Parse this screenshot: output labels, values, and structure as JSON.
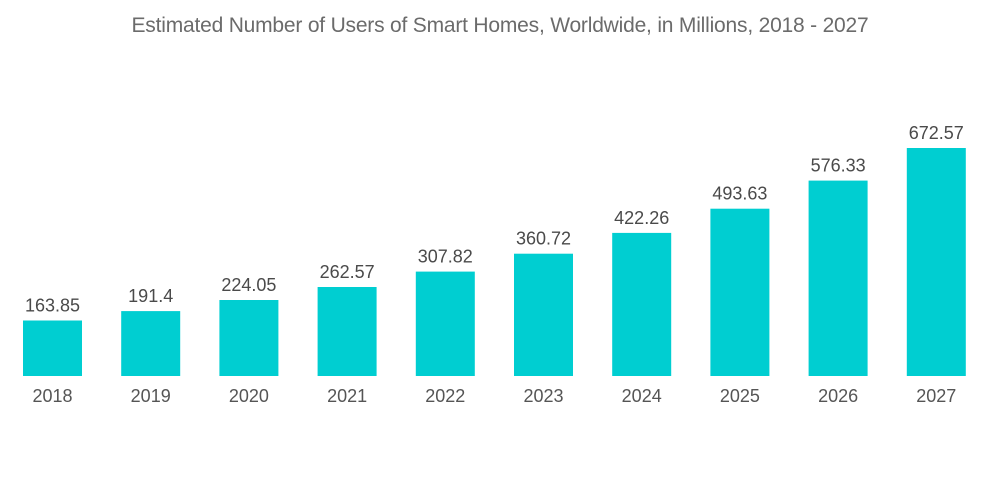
{
  "chart_data": {
    "type": "bar",
    "title": "Estimated Number of Users of Smart Homes, Worldwide, in Millions, 2018 - 2027",
    "xlabel": "",
    "ylabel": "",
    "categories": [
      "2018",
      "2019",
      "2020",
      "2021",
      "2022",
      "2023",
      "2024",
      "2025",
      "2026",
      "2027"
    ],
    "values": [
      163.85,
      191.4,
      224.05,
      262.57,
      307.82,
      360.72,
      422.26,
      493.63,
      576.33,
      672.57
    ],
    "value_labels": [
      "163.85",
      "191.4",
      "224.05",
      "262.57",
      "307.82",
      "360.72",
      "422.26",
      "493.63",
      "576.33",
      "672.57"
    ],
    "ylim": [
      0,
      672.57
    ],
    "grid": false,
    "legend": "none",
    "bar_color": "#00CED1"
  }
}
